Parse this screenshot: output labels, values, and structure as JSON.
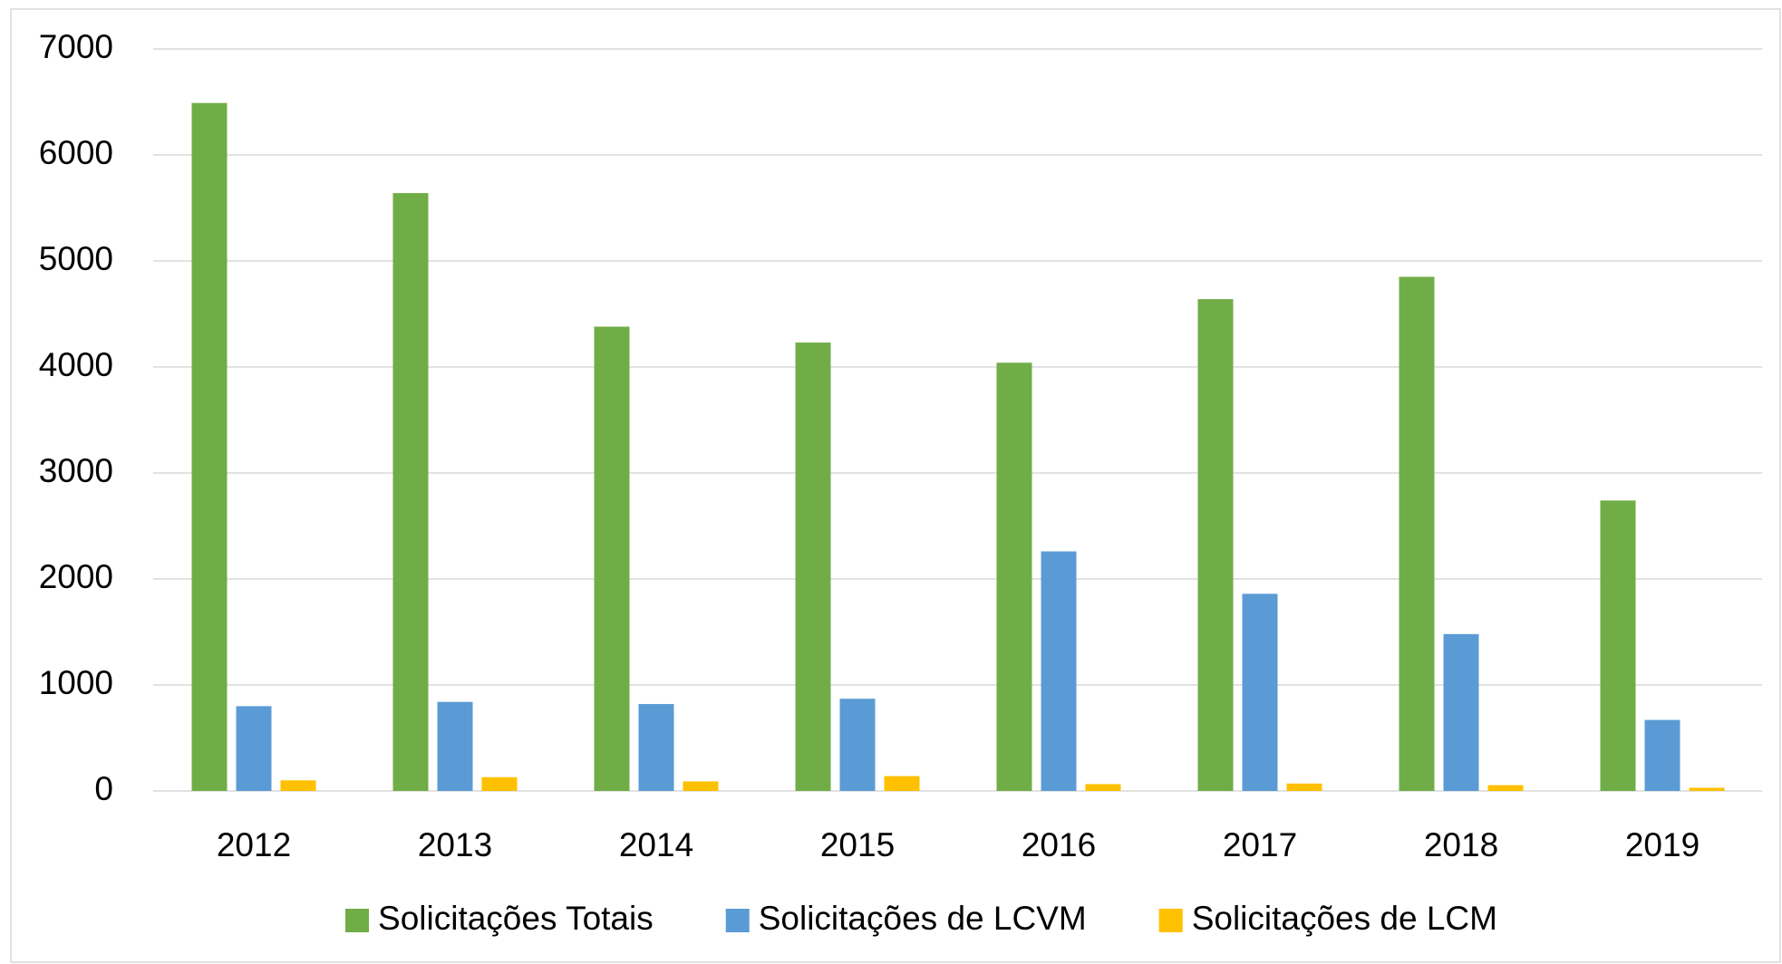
{
  "chart_data": {
    "type": "bar",
    "categories": [
      "2012",
      "2013",
      "2014",
      "2015",
      "2016",
      "2017",
      "2018",
      "2019"
    ],
    "series": [
      {
        "name": "Solicitações Totais",
        "color": "#70ad47",
        "values": [
          6490,
          5640,
          4380,
          4230,
          4040,
          4640,
          4850,
          2740
        ]
      },
      {
        "name": "Solicitações de LCVM",
        "color": "#5b9bd5",
        "values": [
          800,
          840,
          820,
          870,
          2260,
          1860,
          1480,
          670
        ]
      },
      {
        "name": "Solicitações de LCM",
        "color": "#ffc000",
        "values": [
          100,
          130,
          90,
          140,
          65,
          70,
          55,
          30
        ]
      }
    ],
    "ylim": [
      0,
      7000
    ],
    "yticks": [
      0,
      1000,
      2000,
      3000,
      4000,
      5000,
      6000,
      7000
    ],
    "grid": true,
    "legend": "bottom"
  }
}
